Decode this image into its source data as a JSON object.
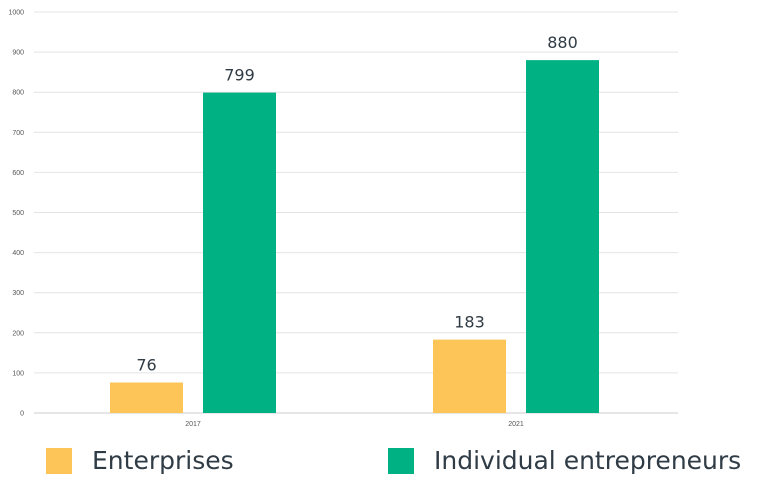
{
  "chart_data": {
    "type": "bar",
    "categories": [
      "2017",
      "2021"
    ],
    "series": [
      {
        "name": "Enterprises",
        "values": [
          76,
          183
        ],
        "color": "#FDC457"
      },
      {
        "name": "Individual entrepreneurs",
        "values": [
          799,
          880
        ],
        "color": "#00B183"
      }
    ],
    "title": "",
    "xlabel": "",
    "ylabel": "",
    "ylim": [
      0,
      1000
    ],
    "yticks": [
      "0",
      "100",
      "200",
      "300",
      "400",
      "500",
      "600",
      "700",
      "800",
      "900",
      "1000"
    ],
    "grid": true,
    "legend": "bottom"
  }
}
